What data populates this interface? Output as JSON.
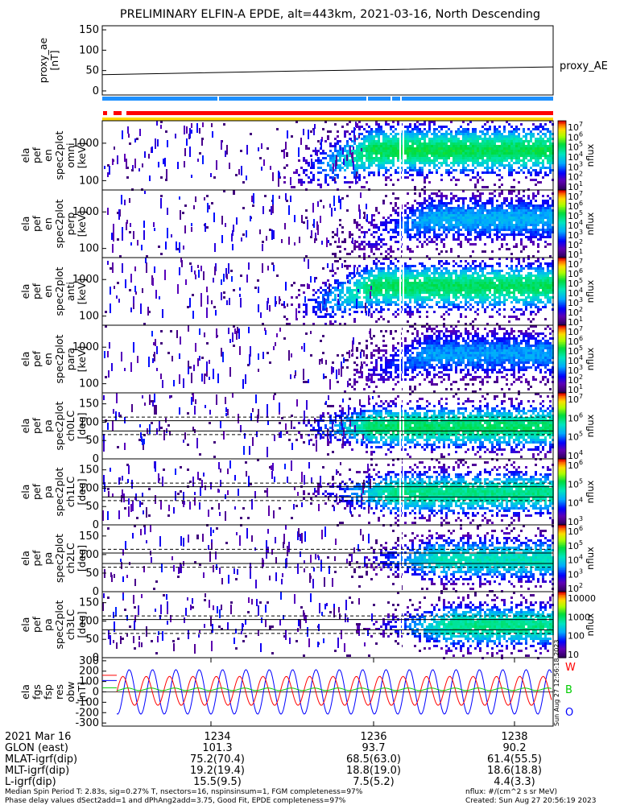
{
  "title": "PRELIMINARY ELFIN-A EPDE, alt=443km, 2021-03-16, North Descending",
  "colors": {
    "red": "#ff0000",
    "blue": "#1e90ff",
    "yellow": "#ffd700",
    "green": "#00cc00",
    "navy": "#0000ff"
  },
  "chart_data": {
    "type": "heatmap",
    "panels": [
      {
        "id": "proxy_ae",
        "type": "line",
        "ylabel_lines": [
          "proxy_ae",
          "[nT]"
        ],
        "yticks": [
          "150",
          "100",
          "50",
          "0"
        ],
        "ylim": [
          -10,
          160
        ],
        "series": [
          {
            "name": "proxy_AE",
            "x": [
              0,
              0.5,
              1
            ],
            "values": [
              40,
              50,
              59
            ]
          }
        ]
      },
      {
        "id": "en_omni",
        "type": "heatmap",
        "ylabel_lines": [
          "ela",
          "pef",
          "en",
          "spec2plot",
          "omni",
          "[keV]"
        ],
        "yticks": [
          "1000",
          "100"
        ],
        "ylog": true,
        "cbar": {
          "title": "nflux",
          "labels": [
            "10^7",
            "10^6",
            "10^5",
            "10^4",
            "10^3",
            "10^2",
            "10^1"
          ]
        }
      },
      {
        "id": "en_perp",
        "type": "heatmap",
        "ylabel_lines": [
          "ela",
          "pef",
          "en",
          "spec2plot",
          "perp",
          "[keV]"
        ],
        "yticks": [
          "1000",
          "100"
        ],
        "ylog": true,
        "cbar": {
          "title": "nflux",
          "labels": [
            "10^7",
            "10^6",
            "10^5",
            "10^4",
            "10^3",
            "10^2",
            "10^1"
          ]
        }
      },
      {
        "id": "en_anti",
        "type": "heatmap",
        "ylabel_lines": [
          "ela",
          "pef",
          "en",
          "spec2plot",
          "anti",
          "[keV]"
        ],
        "yticks": [
          "1000",
          "100"
        ],
        "ylog": true,
        "cbar": {
          "title": "nflux",
          "labels": [
            "10^7",
            "10^6",
            "10^5",
            "10^4",
            "10^3",
            "10^2",
            "10^1"
          ]
        }
      },
      {
        "id": "en_para",
        "type": "heatmap",
        "ylabel_lines": [
          "ela",
          "pef",
          "en",
          "spec2plot",
          "para",
          "[keV]"
        ],
        "yticks": [
          "1000",
          "100"
        ],
        "ylog": true,
        "cbar": {
          "title": "nflux",
          "labels": [
            "10^7",
            "10^6",
            "10^5",
            "10^4",
            "10^3",
            "10^2",
            "10^1"
          ]
        }
      },
      {
        "id": "pa_ch0",
        "type": "heatmap",
        "ylabel_lines": [
          "ela",
          "pef",
          "pa",
          "spec2plot",
          "ch0LC",
          "[deg]"
        ],
        "yticks": [
          "150",
          "100",
          "50",
          "0"
        ],
        "ylim": [
          0,
          180
        ],
        "cbar": {
          "title": "nflux",
          "labels": [
            "10^7",
            "10^6",
            "10^5",
            "10^4"
          ]
        }
      },
      {
        "id": "pa_ch1",
        "type": "heatmap",
        "ylabel_lines": [
          "ela",
          "pef",
          "pa",
          "spec2plot",
          "ch1LC",
          "[deg]"
        ],
        "yticks": [
          "150",
          "100",
          "50",
          "0"
        ],
        "ylim": [
          0,
          180
        ],
        "cbar": {
          "title": "nflux",
          "labels": [
            "10^6",
            "10^5",
            "10^4",
            "10^3"
          ]
        }
      },
      {
        "id": "pa_ch2",
        "type": "heatmap",
        "ylabel_lines": [
          "ela",
          "pef",
          "pa",
          "spec2plot",
          "ch2LC",
          "[deg]"
        ],
        "yticks": [
          "150",
          "100",
          "50",
          "0"
        ],
        "ylim": [
          0,
          180
        ],
        "cbar": {
          "title": "nflux",
          "labels": [
            "10^6",
            "10^5",
            "10^4",
            "10^3",
            "10^2"
          ]
        }
      },
      {
        "id": "pa_ch3",
        "type": "heatmap",
        "ylabel_lines": [
          "ela",
          "pef",
          "pa",
          "spec2plot",
          "ch3LC",
          "[deg]"
        ],
        "yticks": [
          "150",
          "100",
          "50",
          "0"
        ],
        "ylim": [
          0,
          180
        ],
        "cbar": {
          "title": "nflux",
          "labels": [
            "10000",
            "1000",
            "100",
            "10"
          ]
        }
      },
      {
        "id": "fgs_res",
        "type": "line",
        "ylabel_lines": [
          "ela",
          "fgs",
          "fsp",
          "res",
          "obw",
          "[nT]"
        ],
        "yticks": [
          "300",
          "200",
          "100",
          "0",
          "-100",
          "-200",
          "-300"
        ],
        "ylim": [
          -330,
          330
        ],
        "legend": [
          "W",
          "B",
          "O"
        ]
      }
    ],
    "x_ticks": [
      "1234",
      "1236",
      "1238"
    ]
  },
  "footer": {
    "rows": [
      {
        "label": "2021 Mar 16",
        "vals": [
          "1234",
          "1236",
          "1238"
        ]
      },
      {
        "label": "GLON (east)",
        "vals": [
          "101.3",
          "93.7",
          "90.2"
        ]
      },
      {
        "label": "MLAT-igrf(dip)",
        "vals": [
          "75.2(70.4)",
          "68.5(63.0)",
          "61.4(55.5)"
        ]
      },
      {
        "label": "MLT-igrf(dip)",
        "vals": [
          "19.2(19.4)",
          "18.8(19.0)",
          "18.6(18.8)"
        ]
      },
      {
        "label": "L-igrf(dip)",
        "vals": [
          "15.5(9.5)",
          "7.5(5.2)",
          "4.4(3.3)"
        ]
      }
    ],
    "note1": "Median Spin Period T: 2.83s, sig=0.27% T, nsectors=16, nspinsinsum=1, FGM completeness=97%",
    "note2": "Phase delay values dSect2add=1 and dPhAng2add=3.75, Good Fit, EPDE completeness=97%",
    "units": "nflux: #/(cm^2 s sr MeV)",
    "created": "Created: Sun Aug 27 20:56:19 2023",
    "side_stamp": "Sun Aug 27 12:56:18 2023"
  }
}
